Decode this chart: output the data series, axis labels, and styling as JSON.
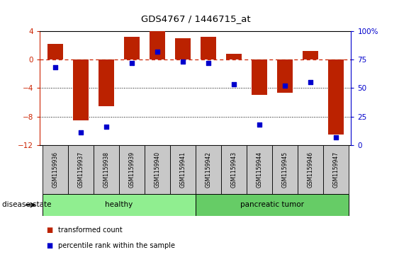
{
  "title": "GDS4767 / 1446715_at",
  "samples": [
    "GSM1159936",
    "GSM1159937",
    "GSM1159938",
    "GSM1159939",
    "GSM1159940",
    "GSM1159941",
    "GSM1159942",
    "GSM1159943",
    "GSM1159944",
    "GSM1159945",
    "GSM1159946",
    "GSM1159947"
  ],
  "bar_values": [
    2.2,
    -8.5,
    -6.5,
    3.2,
    4.0,
    3.0,
    3.2,
    0.8,
    -5.0,
    -4.7,
    1.2,
    -10.5
  ],
  "percentile_values": [
    68,
    11,
    16,
    72,
    82,
    73,
    72,
    53,
    18,
    52,
    55,
    7
  ],
  "bar_color": "#bb2200",
  "blue_color": "#0000cc",
  "ylim_left": [
    -12,
    4
  ],
  "ylim_right": [
    0,
    100
  ],
  "yticks_left": [
    4,
    0,
    -4,
    -8,
    -12
  ],
  "yticks_right": [
    0,
    25,
    50,
    75,
    100
  ],
  "groups": [
    {
      "label": "healthy",
      "start": 0,
      "end": 6,
      "color": "#90ee90"
    },
    {
      "label": "pancreatic tumor",
      "start": 6,
      "end": 12,
      "color": "#66cc66"
    }
  ],
  "disease_state_label": "disease state",
  "legend_entries": [
    {
      "color": "#bb2200",
      "label": "transformed count"
    },
    {
      "color": "#0000cc",
      "label": "percentile rank within the sample"
    }
  ],
  "hline_color": "#cc2200",
  "dotted_color": "#000000",
  "bg_color": "#ffffff",
  "tick_label_box_color": "#c8c8c8"
}
